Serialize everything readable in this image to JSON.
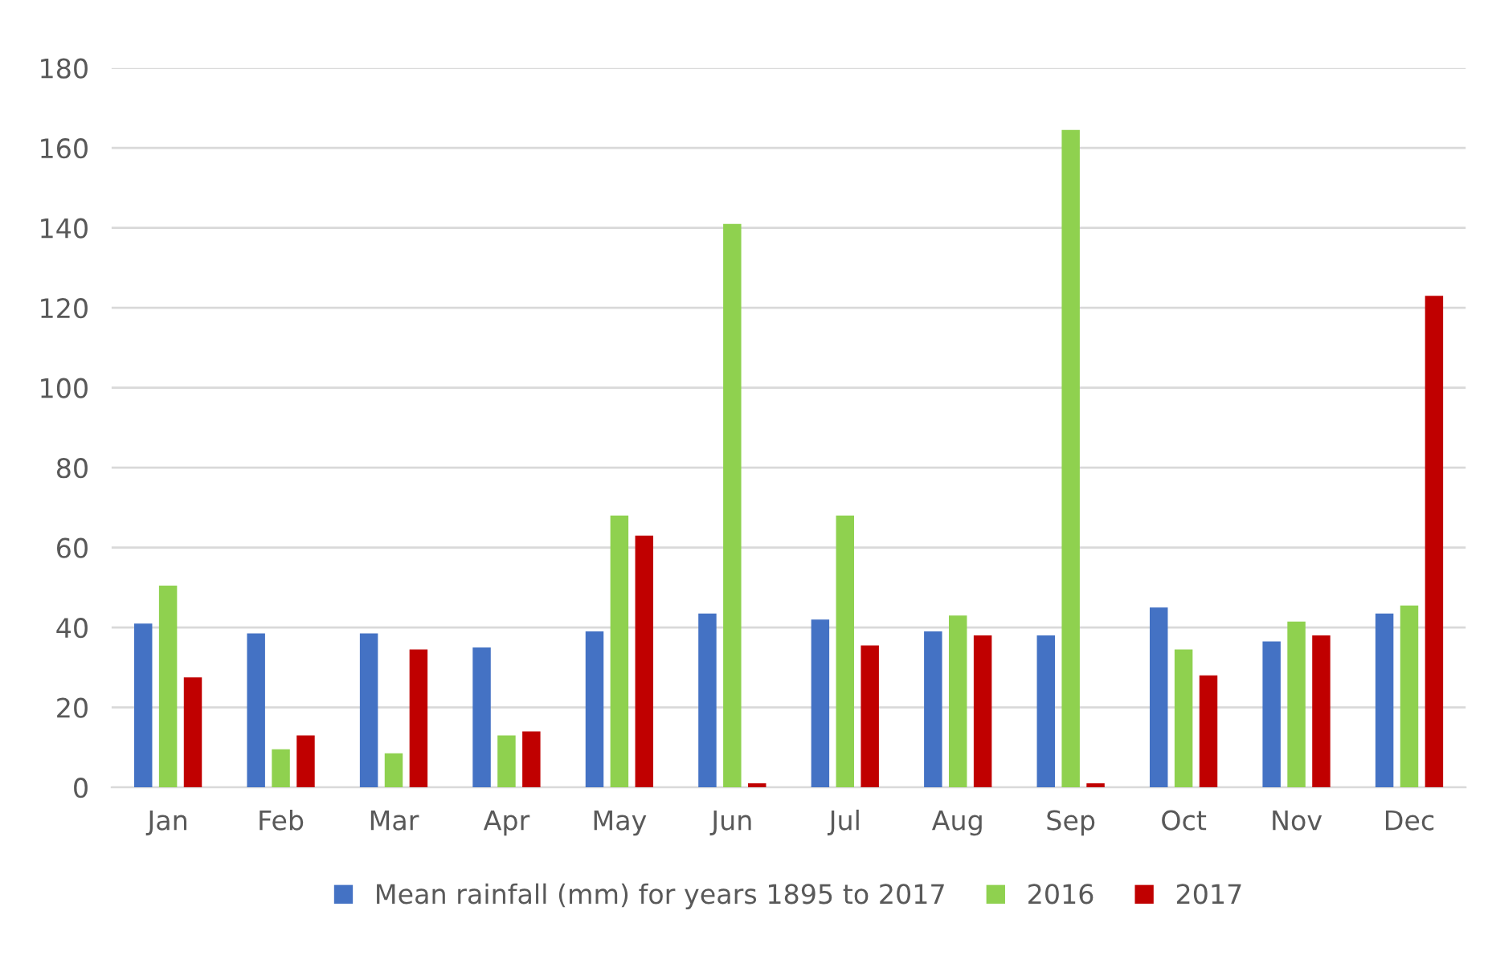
{
  "chart_data": {
    "type": "bar",
    "categories": [
      "Jan",
      "Feb",
      "Mar",
      "Apr",
      "May",
      "Jun",
      "Jul",
      "Aug",
      "Sep",
      "Oct",
      "Nov",
      "Dec"
    ],
    "series": [
      {
        "name": "Mean rainfall (mm) for years 1895 to 2017",
        "color": "#4472c4",
        "values": [
          41,
          38.5,
          38.5,
          35,
          39,
          43.5,
          42,
          39,
          38,
          45,
          36.5,
          43.5
        ]
      },
      {
        "name": "2016",
        "color": "#8fd14f",
        "values": [
          50.5,
          9.5,
          8.5,
          13,
          68,
          141,
          68,
          43,
          164.5,
          34.5,
          41.5,
          45.5
        ]
      },
      {
        "name": "2017",
        "color": "#c00000",
        "values": [
          27.5,
          13,
          34.5,
          14,
          63,
          1,
          35.5,
          38,
          1,
          28,
          38,
          123
        ]
      }
    ],
    "ylim": [
      0,
      180
    ],
    "yticks": [
      0,
      20,
      40,
      60,
      80,
      100,
      120,
      140,
      160,
      180
    ],
    "grid": "y",
    "legend": "bottom"
  }
}
